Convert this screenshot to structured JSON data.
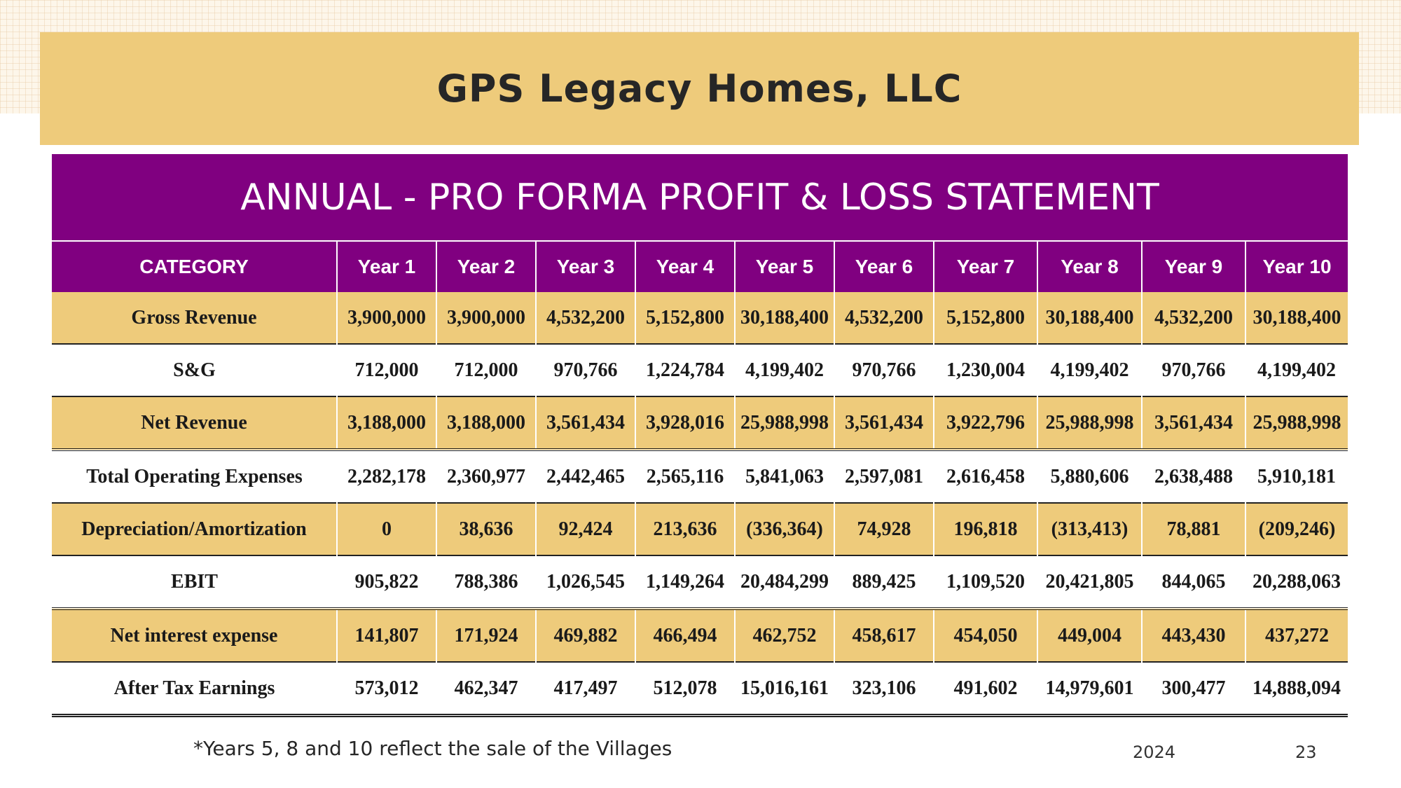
{
  "header": {
    "title": "GPS Legacy Homes, LLC"
  },
  "table": {
    "heading": "ANNUAL - PRO FORMA PROFIT & LOSS STATEMENT",
    "columns": [
      "CATEGORY",
      "Year 1",
      "Year 2",
      "Year 3",
      "Year 4",
      "Year 5",
      "Year 6",
      "Year 7",
      "Year 8",
      "Year 9",
      "Year 10"
    ],
    "rows": [
      {
        "cells": [
          "Gross Revenue",
          "3,900,000",
          "3,900,000",
          "4,532,200",
          "5,152,800",
          "30,188,400",
          "4,532,200",
          "5,152,800",
          "30,188,400",
          "4,532,200",
          "30,188,400"
        ]
      },
      {
        "cells": [
          "S&G",
          "712,000",
          "712,000",
          "970,766",
          "1,224,784",
          "4,199,402",
          "970,766",
          "1,230,004",
          "4,199,402",
          "970,766",
          "4,199,402"
        ]
      },
      {
        "cells": [
          "Net Revenue",
          "3,188,000",
          "3,188,000",
          "3,561,434",
          "3,928,016",
          "25,988,998",
          "3,561,434",
          "3,922,796",
          "25,988,998",
          "3,561,434",
          "25,988,998"
        ]
      },
      {
        "cells": [
          "Total Operating Expenses",
          "2,282,178",
          "2,360,977",
          "2,442,465",
          "2,565,116",
          "5,841,063",
          "2,597,081",
          "2,616,458",
          "5,880,606",
          "2,638,488",
          "5,910,181"
        ]
      },
      {
        "cells": [
          "Depreciation/Amortization",
          "0",
          "38,636",
          "92,424",
          "213,636",
          "(336,364)",
          "74,928",
          "196,818",
          "(313,413)",
          "78,881",
          "(209,246)"
        ]
      },
      {
        "cells": [
          "EBIT",
          "905,822",
          "788,386",
          "1,026,545",
          "1,149,264",
          "20,484,299",
          "889,425",
          "1,109,520",
          "20,421,805",
          "844,065",
          "20,288,063"
        ]
      },
      {
        "cells": [
          "Net interest expense",
          "141,807",
          "171,924",
          "469,882",
          "466,494",
          "462,752",
          "458,617",
          "454,050",
          "449,004",
          "443,430",
          "437,272"
        ]
      },
      {
        "cells": [
          "After Tax Earnings",
          "573,012",
          "462,347",
          "417,497",
          "512,078",
          "15,016,161",
          "323,106",
          "491,602",
          "14,979,601",
          "300,477",
          "14,888,094"
        ]
      }
    ]
  },
  "footer": {
    "footnote": "*Years 5, 8 and 10 reflect the sale of the Villages",
    "year": "2024",
    "page_number": "23"
  }
}
